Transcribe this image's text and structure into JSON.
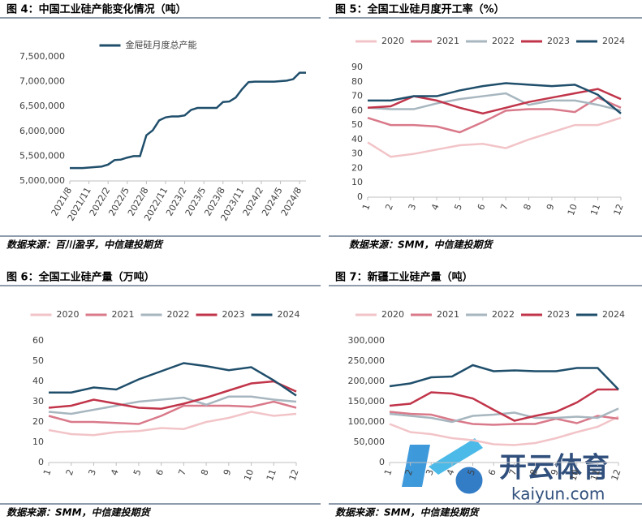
{
  "chart_data": [
    {
      "type": "line",
      "title": "图 4：中国工业硅产能变化情况（吨）",
      "source": "数据来源：百川盈孚，中信建投期货",
      "grid": false,
      "categories": [
        "2021/8",
        null,
        null,
        "2021/11",
        null,
        null,
        "2022/2",
        null,
        null,
        "2022/5",
        null,
        null,
        "2022/8",
        null,
        null,
        "2022/11",
        null,
        null,
        "2023/2",
        null,
        null,
        "2023/5",
        null,
        null,
        "2023/8",
        null,
        null,
        "2023/11",
        null,
        null,
        "2024/2",
        null,
        null,
        "2024/5",
        null,
        null,
        "2024/8",
        null
      ],
      "series": [
        {
          "name": "金屉硅月度总产能",
          "color": "#1f4e6b",
          "values": [
            5260000,
            5260000,
            5260000,
            5270000,
            5280000,
            5290000,
            5330000,
            5420000,
            5430000,
            5470000,
            5500000,
            5500000,
            5920000,
            6020000,
            6220000,
            6280000,
            6300000,
            6300000,
            6320000,
            6430000,
            6470000,
            6470000,
            6470000,
            6470000,
            6590000,
            6600000,
            6680000,
            6850000,
            6990000,
            7000000,
            7000000,
            7000000,
            7000000,
            7010000,
            7020000,
            7050000,
            7180000,
            7180000
          ]
        }
      ],
      "ylim": [
        5000000,
        7500000
      ],
      "yticks": [
        {
          "value": 5000000,
          "label": "5,000,000"
        },
        {
          "value": 5500000,
          "label": "5,500,000"
        },
        {
          "value": 6000000,
          "label": "6,000,000"
        },
        {
          "value": 6500000,
          "label": "6,500,000"
        },
        {
          "value": 7000000,
          "label": "7,000,000"
        },
        {
          "value": 7500000,
          "label": "7,500,000"
        }
      ]
    },
    {
      "type": "line",
      "title": "图 5：全国工业硅月度开工率（%）",
      "source": "数据来源：SMM，中信建投期货",
      "grid": false,
      "categories": [
        "1",
        "2",
        "3",
        "4",
        "5",
        "6",
        "7",
        "8",
        "9",
        "10",
        "11",
        "12"
      ],
      "series": [
        {
          "name": "2020",
          "color": "#f2c4c8",
          "values": [
            38,
            28,
            30,
            33,
            36,
            37,
            34,
            40,
            45,
            50,
            50,
            55
          ]
        },
        {
          "name": "2021",
          "color": "#d9798a",
          "values": [
            55,
            50,
            50,
            49,
            45,
            52,
            60,
            61,
            61,
            59,
            69,
            62
          ]
        },
        {
          "name": "2022",
          "color": "#a7b6bf",
          "values": [
            62,
            61,
            61,
            65,
            68,
            70,
            72,
            64,
            67,
            67,
            64,
            60
          ]
        },
        {
          "name": "2023",
          "color": "#c1354a",
          "values": [
            62,
            63,
            70,
            67,
            62,
            58,
            62,
            66,
            69,
            72,
            75,
            68
          ]
        },
        {
          "name": "2024",
          "color": "#1f4e6b",
          "values": [
            67,
            67,
            70,
            70,
            74,
            77,
            79,
            78,
            77,
            78,
            71,
            58
          ]
        }
      ],
      "ylim": [
        0,
        90
      ],
      "yticks": [
        0,
        10,
        20,
        30,
        40,
        50,
        60,
        70,
        80,
        90
      ]
    },
    {
      "type": "line",
      "title": "图 6：全国工业硅产量（万吨）",
      "source": "数据来源：SMM，中信建投期货",
      "grid": false,
      "categories": [
        "1",
        "2",
        "3",
        "4",
        "5",
        "6",
        "7",
        "8",
        "9",
        "10",
        "11",
        "12"
      ],
      "series": [
        {
          "name": "2020",
          "color": "#f2c4c8",
          "values": [
            16,
            14,
            13.5,
            15,
            15.5,
            17,
            16.5,
            20,
            22,
            25,
            23,
            24
          ]
        },
        {
          "name": "2021",
          "color": "#d9798a",
          "values": [
            23,
            20,
            20,
            19.5,
            19,
            23,
            28,
            28,
            28,
            27.5,
            30,
            27
          ]
        },
        {
          "name": "2022",
          "color": "#a7b6bf",
          "values": [
            25,
            24,
            26,
            28,
            30,
            31,
            32,
            28.5,
            32.5,
            32.5,
            31,
            30
          ]
        },
        {
          "name": "2023",
          "color": "#c1354a",
          "values": [
            27,
            28,
            31,
            29,
            27,
            26.5,
            29,
            32,
            35.5,
            39,
            40,
            35
          ]
        },
        {
          "name": "2024",
          "color": "#1f4e6b",
          "values": [
            34.5,
            34.5,
            37,
            36,
            41,
            45,
            49,
            47.5,
            45.5,
            47,
            40.5,
            33
          ]
        }
      ],
      "ylim": [
        0,
        60
      ],
      "yticks": [
        0,
        10,
        20,
        30,
        40,
        50,
        60
      ]
    },
    {
      "type": "line",
      "title": "图 7：新疆工业硅产量（吨）",
      "source": "数据来源：SMM，中信建投期货",
      "grid": false,
      "categories": [
        "1",
        "2",
        "3",
        "4",
        "5",
        "6",
        "7",
        "8",
        "9",
        "10",
        "11",
        "12"
      ],
      "series": [
        {
          "name": "2020",
          "color": "#f2c4c8",
          "values": [
            95000,
            75000,
            70000,
            60000,
            55000,
            45000,
            43000,
            48000,
            60000,
            75000,
            88000,
            113000
          ]
        },
        {
          "name": "2021",
          "color": "#d9798a",
          "values": [
            125000,
            120000,
            118000,
            105000,
            95000,
            93000,
            95000,
            95000,
            108000,
            97000,
            115000,
            108000
          ]
        },
        {
          "name": "2022",
          "color": "#a7b6bf",
          "values": [
            120000,
            115000,
            110000,
            100000,
            115000,
            118000,
            123000,
            110000,
            110000,
            113000,
            110000,
            133000
          ]
        },
        {
          "name": "2023",
          "color": "#c1354a",
          "values": [
            140000,
            145000,
            173000,
            170000,
            158000,
            130000,
            103000,
            115000,
            125000,
            148000,
            180000,
            180000
          ]
        },
        {
          "name": "2024",
          "color": "#1f4e6b",
          "values": [
            188000,
            195000,
            210000,
            212000,
            240000,
            225000,
            227000,
            225000,
            225000,
            233000,
            233000,
            180000
          ]
        }
      ],
      "ylim": [
        0,
        300000
      ],
      "yticks": [
        0,
        {
          "value": 50000,
          "label": "50,000"
        },
        {
          "value": 100000,
          "label": "100,000"
        },
        {
          "value": 150000,
          "label": "150,000"
        },
        {
          "value": 200000,
          "label": "200,000"
        },
        {
          "value": 250000,
          "label": "250,000"
        },
        {
          "value": 300000,
          "label": "300,000"
        }
      ]
    }
  ],
  "watermark": {
    "brand": "开云体育",
    "site": "kaiyun.com"
  }
}
